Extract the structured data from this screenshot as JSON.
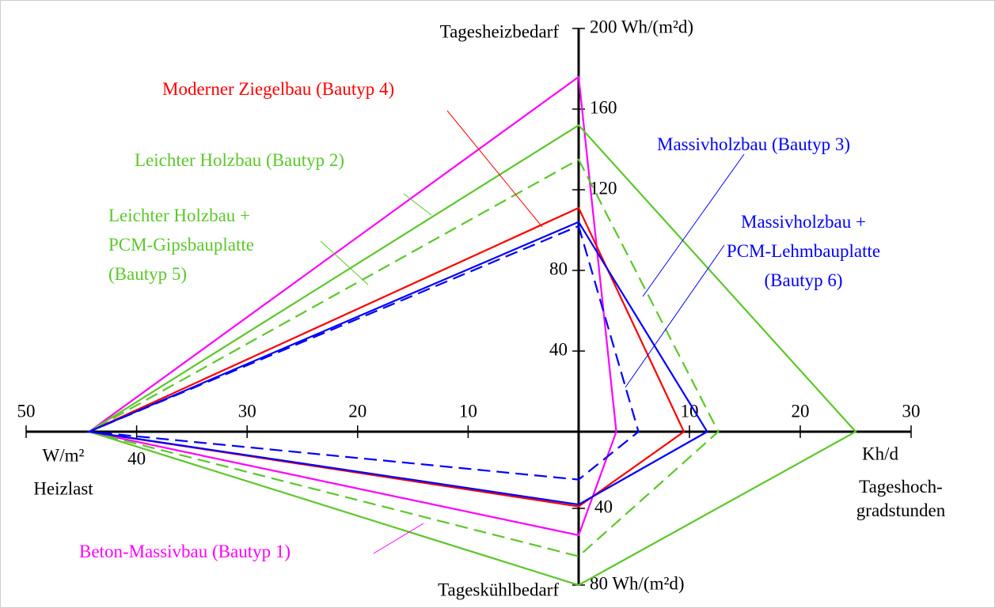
{
  "chart_data": {
    "type": "radar",
    "axes": [
      {
        "name": "Tagesheizbedarf",
        "lim": [
          0,
          200
        ],
        "ticks": [
          40,
          80,
          120,
          160,
          {
            "value": 200,
            "label": "200 Wh/(m²d)"
          }
        ]
      },
      {
        "name": "Heizlast",
        "unit": "W/m²",
        "lim": [
          0,
          50
        ],
        "ticks": [
          10,
          20,
          30,
          40,
          50
        ]
      },
      {
        "name": "Tageshoch-gradstunden",
        "unit": "Kh/d",
        "lim": [
          0,
          30
        ],
        "ticks": [
          10,
          20,
          30
        ]
      },
      {
        "name": "Tageskühlbedarf",
        "lim": [
          0,
          80
        ],
        "ticks": [
          40,
          {
            "value": 80,
            "label": "80 Wh/(m²d)"
          }
        ]
      }
    ],
    "series": [
      {
        "name": "Beton-Massivbau (Bautyp 1)",
        "color": "#ff00ff",
        "dashed": false,
        "values": [
          176,
          44.3,
          3.4,
          54
        ]
      },
      {
        "name": "Leichter Holzbau (Bautyp 2)",
        "color": "#5cc72a",
        "dashed": false,
        "values": [
          152,
          44.3,
          25,
          80
        ]
      },
      {
        "name": "Leichter Holzbau + PCM-Gipsbauplatte (Bautyp 5)",
        "color": "#5cc72a",
        "dashed": true,
        "values": [
          135,
          44.3,
          12.6,
          65
        ]
      },
      {
        "name": "Moderner Ziegelbau (Bautyp 4)",
        "color": "#ff0000",
        "dashed": false,
        "values": [
          111,
          44.3,
          9.5,
          39
        ]
      },
      {
        "name": "Massivholzbau (Bautyp 3)",
        "color": "#0000ff",
        "dashed": false,
        "values": [
          104,
          44.3,
          11.6,
          38
        ]
      },
      {
        "name": "Massivholzbau + PCM-Lehmbauplatte (Bautyp 6)",
        "color": "#0000ff",
        "dashed": true,
        "values": [
          102,
          44.3,
          5.4,
          25
        ]
      }
    ]
  }
}
